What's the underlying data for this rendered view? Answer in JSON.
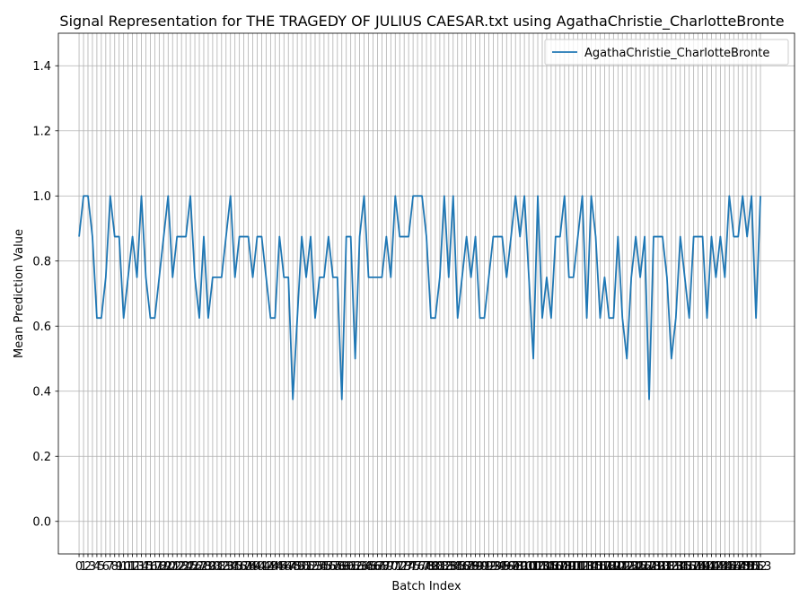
{
  "chart_data": {
    "type": "line",
    "title": "Signal Representation for THE TRAGEDY OF JULIUS CAESAR.txt using AgathaChristie_CharlotteBronte",
    "xlabel": "Batch Index",
    "ylabel": "Mean Prediction Value",
    "ylim": [
      -0.1,
      1.5
    ],
    "xlim": [
      -4.65,
      160.65
    ],
    "yticks": [
      "0.0",
      "0.2",
      "0.4",
      "0.6",
      "0.8",
      "1.0",
      "1.2",
      "1.4"
    ],
    "ytick_values": [
      0.0,
      0.2,
      0.4,
      0.6,
      0.8,
      1.0,
      1.2,
      1.4
    ],
    "grid": true,
    "legend_position": "top-right",
    "line_color": "#1f77b4",
    "series": [
      {
        "name": "AgathaChristie_CharlotteBronte",
        "values": [
          0.875,
          1.0,
          1.0,
          0.875,
          0.625,
          0.625,
          0.75,
          1.0,
          0.875,
          0.875,
          0.625,
          0.75,
          0.875,
          0.75,
          1.0,
          0.75,
          0.625,
          0.625,
          0.75,
          0.875,
          1.0,
          0.75,
          0.875,
          0.875,
          0.875,
          1.0,
          0.75,
          0.625,
          0.875,
          0.625,
          0.75,
          0.75,
          0.75,
          0.875,
          1.0,
          0.75,
          0.875,
          0.875,
          0.875,
          0.75,
          0.875,
          0.875,
          0.75,
          0.625,
          0.625,
          0.875,
          0.75,
          0.75,
          0.375,
          0.625,
          0.875,
          0.75,
          0.875,
          0.625,
          0.75,
          0.75,
          0.875,
          0.75,
          0.75,
          0.375,
          0.875,
          0.875,
          0.5,
          0.875,
          1.0,
          0.75,
          0.75,
          0.75,
          0.75,
          0.875,
          0.75,
          1.0,
          0.875,
          0.875,
          0.875,
          1.0,
          1.0,
          1.0,
          0.875,
          0.625,
          0.625,
          0.75,
          1.0,
          0.75,
          1.0,
          0.625,
          0.75,
          0.875,
          0.75,
          0.875,
          0.625,
          0.625,
          0.75,
          0.875,
          0.875,
          0.875,
          0.75,
          0.875,
          1.0,
          0.875,
          1.0,
          0.75,
          0.5,
          1.0,
          0.625,
          0.75,
          0.625,
          0.875,
          0.875,
          1.0,
          0.75,
          0.75,
          0.875,
          1.0,
          0.625,
          1.0,
          0.875,
          0.625,
          0.75,
          0.625,
          0.625,
          0.875,
          0.625,
          0.5,
          0.75,
          0.875,
          0.75,
          0.875,
          0.375,
          0.875,
          0.875,
          0.875,
          0.75,
          0.5,
          0.625,
          0.875,
          0.75,
          0.625,
          0.875,
          0.875,
          0.875,
          0.625,
          0.875,
          0.75,
          0.875,
          0.75,
          1.0,
          0.875,
          0.875,
          1.0,
          0.875,
          1.0,
          0.625,
          1.0
        ]
      }
    ]
  }
}
